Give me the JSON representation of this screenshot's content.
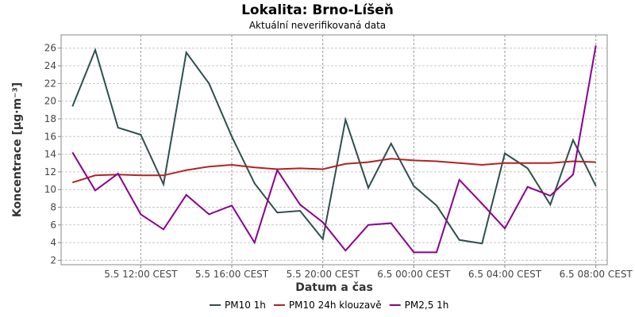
{
  "chart_data": {
    "type": "line",
    "title": "Lokalita: Brno-Líšeň",
    "subtitle": "Aktuální neverifikovaná data",
    "xlabel": "Datum a čas",
    "ylabel": "Koncentrace [µg·m⁻³]",
    "x": [
      "5.5 09:00",
      "5.5 10:00",
      "5.5 11:00",
      "5.5 12:00",
      "5.5 13:00",
      "5.5 14:00",
      "5.5 15:00",
      "5.5 16:00",
      "5.5 17:00",
      "5.5 18:00",
      "5.5 19:00",
      "5.5 20:00",
      "5.5 21:00",
      "5.5 22:00",
      "5.5 23:00",
      "6.5 00:00",
      "6.5 01:00",
      "6.5 02:00",
      "6.5 03:00",
      "6.5 04:00",
      "6.5 05:00",
      "6.5 06:00",
      "6.5 07:00",
      "6.5 08:00"
    ],
    "x_ticks": [
      "5.5 12:00 CEST",
      "5.5 16:00 CEST",
      "5.5 20:00 CEST",
      "6.5 00:00 CEST",
      "6.5 04:00 CEST",
      "6.5 08:00 CEST"
    ],
    "x_tick_positions": [
      3,
      7,
      11,
      15,
      19,
      23
    ],
    "x_range": [
      -0.5,
      23.5
    ],
    "y_ticks": [
      "2",
      "4",
      "6",
      "8",
      "10",
      "12",
      "14",
      "16",
      "18",
      "20",
      "22",
      "24",
      "26"
    ],
    "ylim": [
      1.5,
      27.5
    ],
    "grid": true,
    "legend_position": "bottom-center",
    "series": [
      {
        "name": "PM10 1h",
        "color": "#2f4f4f",
        "values": [
          19.4,
          25.8,
          17.0,
          16.2,
          10.6,
          25.5,
          22.0,
          16.0,
          10.7,
          7.4,
          7.6,
          4.4,
          17.9,
          10.2,
          15.2,
          10.4,
          8.2,
          4.3,
          3.9,
          14.1,
          12.4,
          8.3,
          15.6,
          10.4
        ]
      },
      {
        "name": "PM10 24h klouzavě",
        "color": "#b22222",
        "values": [
          10.8,
          11.6,
          11.7,
          11.6,
          11.6,
          12.2,
          12.6,
          12.8,
          12.5,
          12.3,
          12.4,
          12.3,
          12.9,
          13.1,
          13.5,
          13.3,
          13.2,
          13.0,
          12.8,
          13.0,
          13.0,
          13.0,
          13.2,
          13.1
        ]
      },
      {
        "name": "PM2,5 1h",
        "color": "#8b008b",
        "values": [
          14.2,
          9.9,
          11.8,
          7.2,
          5.5,
          9.4,
          7.2,
          8.2,
          4.0,
          12.2,
          8.3,
          6.3,
          3.1,
          6.0,
          6.2,
          2.9,
          2.9,
          11.1,
          8.4,
          5.6,
          10.3,
          9.3,
          11.7,
          26.3
        ]
      }
    ]
  }
}
